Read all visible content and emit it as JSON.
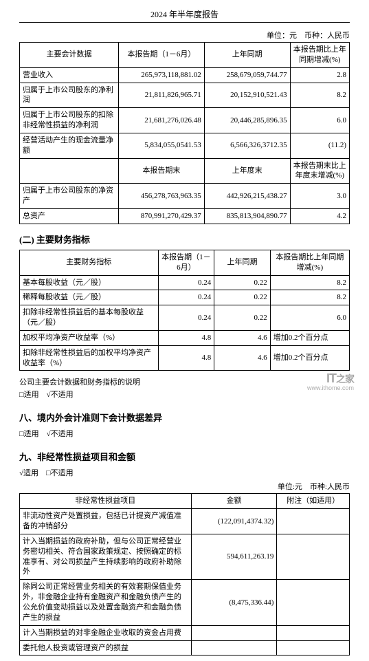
{
  "header": {
    "title": "2024 年半年度报告"
  },
  "unit_line": "单位：元　币种：人民币",
  "table1": {
    "columns": [
      "主要会计数据",
      "本报告期（1－6月）",
      "上年同期",
      "本报告期比上年同期增减(%)"
    ],
    "rows_top": [
      [
        "营业收入",
        "265,973,118,881.02",
        "258,679,059,744.77",
        "2.8"
      ],
      [
        "归属于上市公司股东的净利润",
        "21,811,826,965.71",
        "20,152,910,521.43",
        "8.2"
      ],
      [
        "归属于上市公司股东的扣除非经常性损益的净利润",
        "21,681,276,026.48",
        "20,446,285,896.35",
        "6.0"
      ],
      [
        "经营活动产生的现金流量净额",
        "5,834,055,0541.53",
        "6,566,326,3712.35",
        "(11.2)"
      ]
    ],
    "mid_columns": [
      "",
      "本报告期末",
      "上年度末",
      "本报告期末比上年度末增减(%)"
    ],
    "rows_bottom": [
      [
        "归属于上市公司股东的净资产",
        "456,278,763,963.35",
        "442,926,215,438.27",
        "3.0"
      ],
      [
        "总资产",
        "870,991,270,429.37",
        "835,813,904,890.77",
        "4.2"
      ]
    ]
  },
  "section2": {
    "heading": "(二) 主要财务指标"
  },
  "table2": {
    "columns": [
      "主要财务指标",
      "本报告期（1－6月）",
      "上年同期",
      "本报告期比上年同期增减(%)"
    ],
    "rows": [
      [
        "基本每股收益（元／股）",
        "0.24",
        "0.22",
        "8.2"
      ],
      [
        "稀释每股收益（元／股）",
        "0.24",
        "0.22",
        "8.2"
      ],
      [
        "扣除非经常性损益后的基本每股收益（元／股）",
        "0.24",
        "0.22",
        "6.0"
      ],
      [
        "加权平均净资产收益率（%）",
        "4.8",
        "4.6",
        "增加0.2个百分点"
      ],
      [
        "扣除非经常性损益后的加权平均净资产收益率（%）",
        "4.8",
        "4.6",
        "增加0.2个百分点"
      ]
    ]
  },
  "explain": {
    "text": "公司主要会计数据和财务指标的说明",
    "checkbox": "□适用　√不适用"
  },
  "section8": {
    "heading": "八、境内外会计准则下会计数据差异",
    "checkbox": "□适用　√不适用"
  },
  "section9": {
    "heading": "九、非经常性损益项目和金额",
    "checkbox": "√适用　□不适用",
    "unit_line": "单位:元　币种:人民币"
  },
  "table3": {
    "columns": [
      "非经常性损益项目",
      "金额",
      "附注（如适用）"
    ],
    "rows": [
      [
        "非流动性资产处置损益，包括已计提资产减值准备的冲销部分",
        "(122,091,4374.32)",
        ""
      ],
      [
        "计入当期损益的政府补助，但与公司正常经营业务密切相关、符合国家政策规定、按照确定的标准享有、对公司损益产生持续影响的政府补助除外",
        "594,611,263.19",
        ""
      ],
      [
        "除同公司正常经营业务相关的有效套期保值业务外，非金融企业持有金融资产和金融负债产生的公允价值变动损益以及处置金融资产和金融负债产生的损益",
        "(8,475,336.44)",
        ""
      ],
      [
        "计入当期损益的对非金融企业收取的资金占用费",
        "",
        ""
      ],
      [
        "委托他人投资或管理资产的损益",
        "",
        ""
      ]
    ]
  },
  "watermark": {
    "top_en": "IT",
    "top_zh": "之家",
    "url": "www.ithome.com"
  }
}
